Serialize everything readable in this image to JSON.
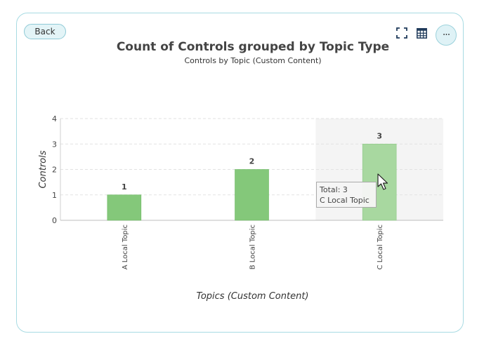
{
  "buttons": {
    "back_label": "Back",
    "more_label": "···"
  },
  "icons": {
    "fullscreen": "fullscreen-icon",
    "table": "table-icon",
    "more": "more-icon"
  },
  "colors": {
    "bar": "#84c87a",
    "bar_highlight": "#a8d8a0",
    "accent_border": "#a8dbe3"
  },
  "tooltip": {
    "total_line": "Total: 3",
    "category_line": "C Local Topic"
  },
  "chart_data": {
    "type": "bar",
    "title": "Count of Controls grouped by Topic Type",
    "subtitle": "Controls by Topic (Custom Content)",
    "xlabel": "Topics (Custom Content)",
    "ylabel": "Controls",
    "categories": [
      "A Local Topic",
      "B Local Topic",
      "C Local Topic"
    ],
    "values": [
      1,
      2,
      3
    ],
    "data_labels": [
      "1",
      "2",
      "3"
    ],
    "y_ticks": [
      "0",
      "1",
      "2",
      "3",
      "4"
    ],
    "ylim": [
      0,
      4
    ],
    "grid": true,
    "highlighted_category": "C Local Topic"
  }
}
